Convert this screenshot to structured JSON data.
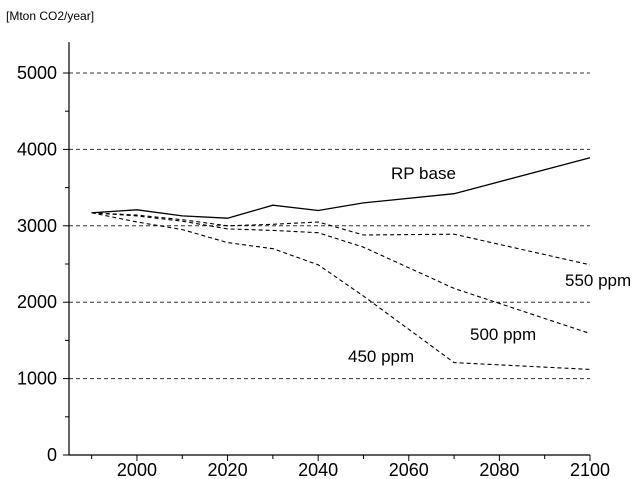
{
  "chart_data": {
    "type": "line",
    "title": "",
    "xlabel": "",
    "ylabel": "[Mton CO2/year]",
    "xlim": [
      1985,
      2100
    ],
    "ylim": [
      0,
      5300
    ],
    "x_ticks": [
      2000,
      2020,
      2040,
      2060,
      2080,
      2100
    ],
    "y_ticks": [
      0,
      1000,
      2000,
      3000,
      4000,
      5000
    ],
    "grid": "horizontal dashed at 1000, 2000, 3000, 4000, 5000",
    "legend": "none; series labeled inline",
    "series": [
      {
        "name": "RP base",
        "line_style": "solid",
        "x": [
          1990,
          2000,
          2010,
          2020,
          2030,
          2040,
          2050,
          2070,
          2100
        ],
        "y": [
          3170,
          3210,
          3130,
          3100,
          3270,
          3200,
          3300,
          3420,
          3890
        ]
      },
      {
        "name": "550 ppm",
        "line_style": "dashed",
        "x": [
          1990,
          2000,
          2010,
          2020,
          2030,
          2040,
          2050,
          2070,
          2100
        ],
        "y": [
          3170,
          3140,
          3080,
          3000,
          3020,
          3050,
          2880,
          2890,
          2490
        ]
      },
      {
        "name": "500 ppm",
        "line_style": "dashed",
        "x": [
          1990,
          2000,
          2010,
          2020,
          2030,
          2040,
          2050,
          2070,
          2100
        ],
        "y": [
          3170,
          3130,
          3060,
          2960,
          2940,
          2910,
          2720,
          2180,
          1590
        ]
      },
      {
        "name": "450 ppm",
        "line_style": "dashed",
        "x": [
          1990,
          2000,
          2010,
          2020,
          2030,
          2040,
          2050,
          2070,
          2100
        ],
        "y": [
          3170,
          3050,
          2950,
          2780,
          2700,
          2490,
          2080,
          1210,
          1120
        ]
      }
    ]
  }
}
